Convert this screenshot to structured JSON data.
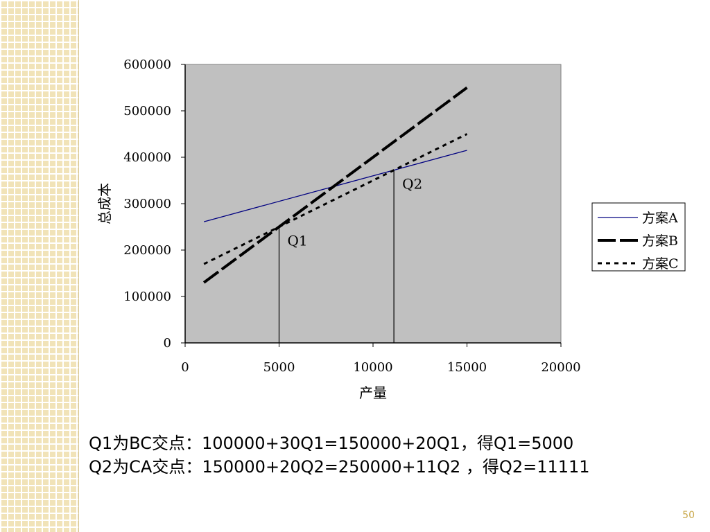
{
  "chart_data": {
    "type": "line",
    "xlabel": "产量",
    "ylabel": "总成本",
    "xlim": [
      0,
      20000
    ],
    "ylim": [
      0,
      600000
    ],
    "x_ticks": [
      "0",
      "5000",
      "10000",
      "15000",
      "20000"
    ],
    "y_ticks": [
      "0",
      "100000",
      "200000",
      "300000",
      "400000",
      "500000",
      "600000"
    ],
    "grid": false,
    "plot_background": "#c0c0c0",
    "legend_position": "right",
    "series": [
      {
        "name": "方案A",
        "color": "#000080",
        "style": "solid",
        "x": [
          1000,
          15000
        ],
        "y": [
          261000,
          415000
        ]
      },
      {
        "name": "方案B",
        "color": "#000000",
        "style": "long-dash",
        "x": [
          1000,
          15000
        ],
        "y": [
          130000,
          550000
        ]
      },
      {
        "name": "方案C",
        "color": "#000000",
        "style": "dotted",
        "x": [
          1000,
          15000
        ],
        "y": [
          170000,
          450000
        ]
      }
    ],
    "annotations": [
      {
        "label": "Q1",
        "x": 5000,
        "y": 250000
      },
      {
        "label": "Q2",
        "x": 11111,
        "y": 372221
      }
    ]
  },
  "notes": {
    "line1": "Q1为BC交点：100000+30Q1=150000+20Q1，得Q1=5000",
    "line2": "Q2为CA交点：150000+20Q2=250000+11Q2 ，得Q2=11111"
  },
  "page_number": "50"
}
